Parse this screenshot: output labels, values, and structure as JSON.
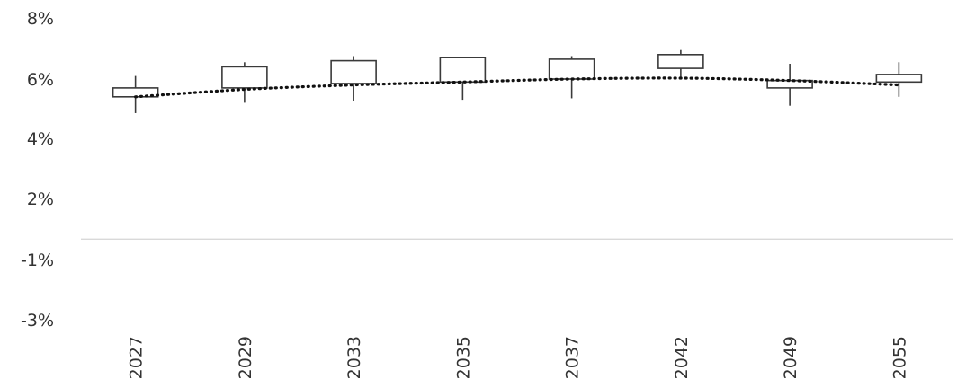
{
  "chart_data": {
    "type": "candlestick",
    "categories": [
      "2027",
      "2029",
      "2033",
      "2035",
      "2037",
      "2042",
      "2049",
      "2055"
    ],
    "series": [
      {
        "open": [
          5.4,
          5.7,
          5.85,
          5.9,
          6.0,
          6.35,
          5.95,
          5.9
        ],
        "close": [
          5.7,
          6.4,
          6.6,
          6.7,
          6.65,
          6.8,
          5.7,
          6.15
        ],
        "high": [
          6.1,
          6.55,
          6.75,
          6.7,
          6.75,
          6.95,
          6.5,
          6.55
        ],
        "low": [
          4.85,
          5.2,
          5.25,
          5.3,
          5.35,
          6.0,
          5.1,
          5.4
        ]
      }
    ],
    "trendline": {
      "style": "dotted",
      "color": "#111111",
      "values": [
        5.4,
        5.65,
        5.8,
        5.9,
        6.0,
        6.03,
        5.95,
        5.8
      ]
    },
    "y_axis": {
      "tick_values": [
        8,
        6,
        4,
        2,
        -1,
        -3
      ],
      "tick_labels": [
        "8%",
        "6%",
        "4%",
        "2%",
        "-1%",
        "-3%"
      ]
    },
    "x_label_rotation": -90,
    "zero_line": true,
    "grid": false,
    "colors": {
      "candle_stroke": "#3a3a3a",
      "candle_fill": "#ffffff",
      "zero_line": "#d9d9d9",
      "text": "#333333"
    }
  }
}
